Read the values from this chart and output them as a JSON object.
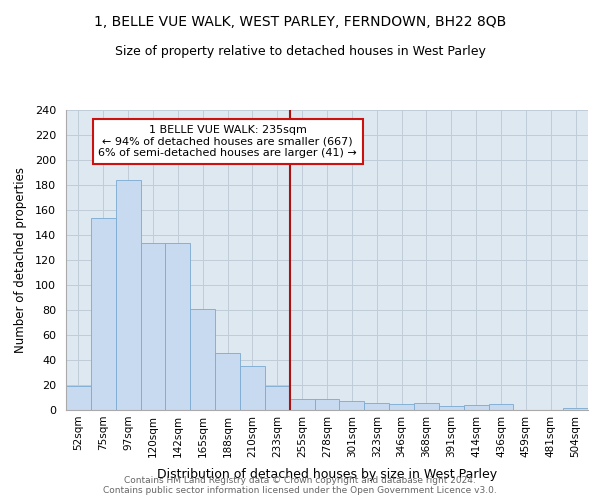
{
  "title": "1, BELLE VUE WALK, WEST PARLEY, FERNDOWN, BH22 8QB",
  "subtitle": "Size of property relative to detached houses in West Parley",
  "xlabel": "Distribution of detached houses by size in West Parley",
  "ylabel": "Number of detached properties",
  "bar_labels": [
    "52sqm",
    "75sqm",
    "97sqm",
    "120sqm",
    "142sqm",
    "165sqm",
    "188sqm",
    "210sqm",
    "233sqm",
    "255sqm",
    "278sqm",
    "301sqm",
    "323sqm",
    "346sqm",
    "368sqm",
    "391sqm",
    "414sqm",
    "436sqm",
    "459sqm",
    "481sqm",
    "504sqm"
  ],
  "bar_values": [
    19,
    154,
    184,
    134,
    134,
    81,
    46,
    35,
    19,
    9,
    9,
    7,
    6,
    5,
    6,
    3,
    4,
    5,
    0,
    0,
    2
  ],
  "bar_color": "#c8daf0",
  "bar_edge_color": "#7aaad0",
  "property_line_color": "#aa1111",
  "annotation_text": "1 BELLE VUE WALK: 235sqm\n← 94% of detached houses are smaller (667)\n6% of semi-detached houses are larger (41) →",
  "annotation_box_color": "#cc1111",
  "ylim": [
    0,
    240
  ],
  "yticks": [
    0,
    20,
    40,
    60,
    80,
    100,
    120,
    140,
    160,
    180,
    200,
    220,
    240
  ],
  "grid_color": "#c0ccd8",
  "background_color": "#dde8f0",
  "footer_line1": "Contains HM Land Registry data © Crown copyright and database right 2024.",
  "footer_line2": "Contains public sector information licensed under the Open Government Licence v3.0.",
  "prop_bar_index": 8,
  "prop_sqm": 233
}
